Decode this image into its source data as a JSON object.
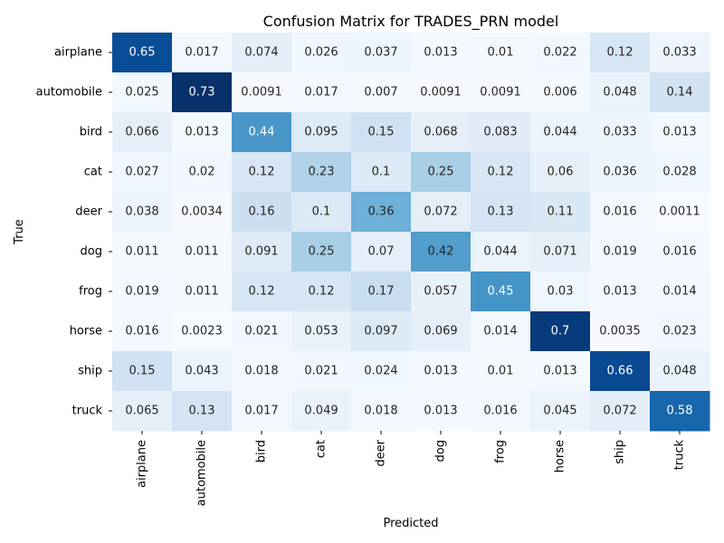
{
  "chart_data": {
    "type": "heatmap",
    "title": "Confusion Matrix for TRADES_PRN model",
    "xlabel": "Predicted",
    "ylabel": "True",
    "colormap": "Blues",
    "vmin": 0,
    "vmax": 0.73,
    "legend": "none",
    "x_categories": [
      "airplane",
      "automobile",
      "bird",
      "cat",
      "deer",
      "dog",
      "frog",
      "horse",
      "ship",
      "truck"
    ],
    "y_categories": [
      "airplane",
      "automobile",
      "bird",
      "cat",
      "deer",
      "dog",
      "frog",
      "horse",
      "ship",
      "truck"
    ],
    "values": [
      [
        0.65,
        0.017,
        0.074,
        0.026,
        0.037,
        0.013,
        0.01,
        0.022,
        0.12,
        0.033
      ],
      [
        0.025,
        0.73,
        0.0091,
        0.017,
        0.007,
        0.0091,
        0.0091,
        0.006,
        0.048,
        0.14
      ],
      [
        0.066,
        0.013,
        0.44,
        0.095,
        0.15,
        0.068,
        0.083,
        0.044,
        0.033,
        0.013
      ],
      [
        0.027,
        0.02,
        0.12,
        0.23,
        0.1,
        0.25,
        0.12,
        0.06,
        0.036,
        0.028
      ],
      [
        0.038,
        0.0034,
        0.16,
        0.1,
        0.36,
        0.072,
        0.13,
        0.11,
        0.016,
        0.0011
      ],
      [
        0.011,
        0.011,
        0.091,
        0.25,
        0.07,
        0.42,
        0.044,
        0.071,
        0.019,
        0.016
      ],
      [
        0.019,
        0.011,
        0.12,
        0.12,
        0.17,
        0.057,
        0.45,
        0.03,
        0.013,
        0.014
      ],
      [
        0.016,
        0.0023,
        0.021,
        0.053,
        0.097,
        0.069,
        0.014,
        0.7,
        0.0035,
        0.023
      ],
      [
        0.15,
        0.043,
        0.018,
        0.021,
        0.024,
        0.013,
        0.01,
        0.013,
        0.66,
        0.048
      ],
      [
        0.065,
        0.13,
        0.017,
        0.049,
        0.018,
        0.013,
        0.016,
        0.045,
        0.072,
        0.58
      ]
    ],
    "labels": [
      [
        "0.65",
        "0.017",
        "0.074",
        "0.026",
        "0.037",
        "0.013",
        "0.01",
        "0.022",
        "0.12",
        "0.033"
      ],
      [
        "0.025",
        "0.73",
        "0.0091",
        "0.017",
        "0.007",
        "0.0091",
        "0.0091",
        "0.006",
        "0.048",
        "0.14"
      ],
      [
        "0.066",
        "0.013",
        "0.44",
        "0.095",
        "0.15",
        "0.068",
        "0.083",
        "0.044",
        "0.033",
        "0.013"
      ],
      [
        "0.027",
        "0.02",
        "0.12",
        "0.23",
        "0.1",
        "0.25",
        "0.12",
        "0.06",
        "0.036",
        "0.028"
      ],
      [
        "0.038",
        "0.0034",
        "0.16",
        "0.1",
        "0.36",
        "0.072",
        "0.13",
        "0.11",
        "0.016",
        "0.0011"
      ],
      [
        "0.011",
        "0.011",
        "0.091",
        "0.25",
        "0.07",
        "0.42",
        "0.044",
        "0.071",
        "0.019",
        "0.016"
      ],
      [
        "0.019",
        "0.011",
        "0.12",
        "0.12",
        "0.17",
        "0.057",
        "0.45",
        "0.03",
        "0.013",
        "0.014"
      ],
      [
        "0.016",
        "0.0023",
        "0.021",
        "0.053",
        "0.097",
        "0.069",
        "0.014",
        "0.7",
        "0.0035",
        "0.023"
      ],
      [
        "0.15",
        "0.043",
        "0.018",
        "0.021",
        "0.024",
        "0.013",
        "0.01",
        "0.013",
        "0.66",
        "0.048"
      ],
      [
        "0.065",
        "0.13",
        "0.017",
        "0.049",
        "0.018",
        "0.013",
        "0.016",
        "0.045",
        "0.072",
        "0.58"
      ]
    ]
  }
}
